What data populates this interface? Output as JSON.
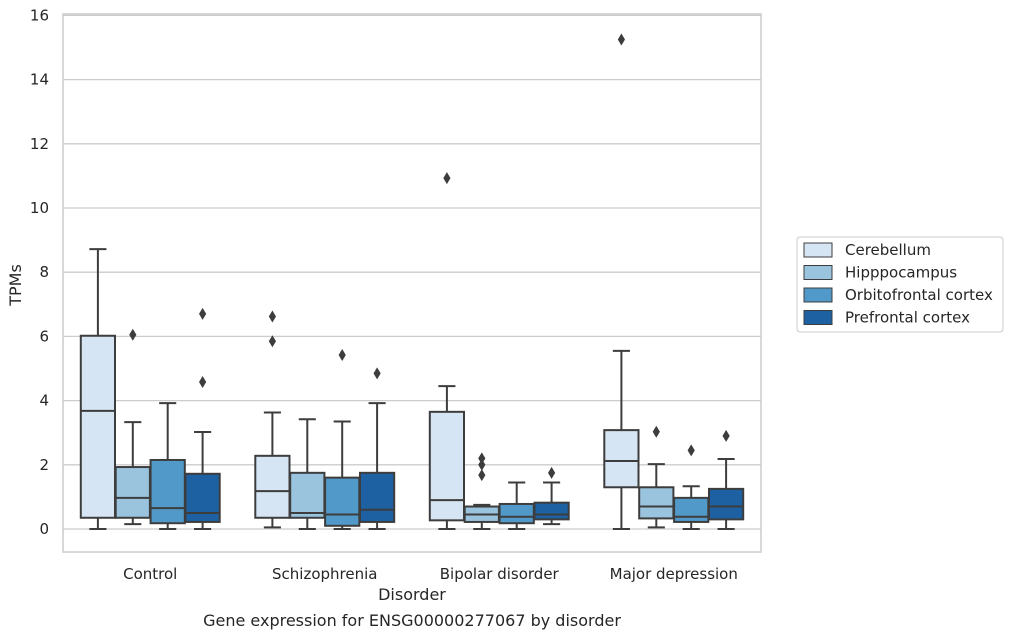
{
  "chart_data": {
    "type": "boxplot",
    "xlabel": "Disorder",
    "ylabel": "TPMs",
    "caption": "Gene expression for ENSG00000277067 by disorder",
    "ylim": [
      -0.7,
      16.1
    ],
    "yticks": [
      0,
      2,
      4,
      6,
      8,
      10,
      12,
      14,
      16
    ],
    "grid": "horizontal",
    "legend_placement": "right",
    "categories": [
      "Control",
      "Schizophrenia",
      "Bipolar disorder",
      "Major depression"
    ],
    "series": [
      {
        "name": "Cerebellum",
        "color": "#d6e5f3",
        "boxes": [
          {
            "min": 0.0,
            "q1": 0.35,
            "median": 3.68,
            "q3": 6.02,
            "max": 8.72,
            "outliers": []
          },
          {
            "min": 0.05,
            "q1": 0.35,
            "median": 1.18,
            "q3": 2.28,
            "max": 3.63,
            "outliers": [
              5.85,
              6.62
            ]
          },
          {
            "min": 0.0,
            "q1": 0.27,
            "median": 0.9,
            "q3": 3.65,
            "max": 4.45,
            "outliers": [
              10.93
            ]
          },
          {
            "min": 0.0,
            "q1": 1.3,
            "median": 2.12,
            "q3": 3.08,
            "max": 5.55,
            "outliers": [
              15.25
            ]
          }
        ]
      },
      {
        "name": "Hipppocampus",
        "color": "#9ac4de",
        "boxes": [
          {
            "min": 0.15,
            "q1": 0.35,
            "median": 0.97,
            "q3": 1.93,
            "max": 3.33,
            "outliers": [
              6.05
            ]
          },
          {
            "min": 0.0,
            "q1": 0.35,
            "median": 0.5,
            "q3": 1.75,
            "max": 3.42,
            "outliers": []
          },
          {
            "min": 0.0,
            "q1": 0.22,
            "median": 0.45,
            "q3": 0.7,
            "max": 0.75,
            "outliers": [
              1.68,
              2.0,
              2.2
            ]
          },
          {
            "min": 0.05,
            "q1": 0.33,
            "median": 0.7,
            "q3": 1.3,
            "max": 2.02,
            "outliers": [
              3.03
            ]
          }
        ]
      },
      {
        "name": "Orbitofrontal cortex",
        "color": "#5199c8",
        "boxes": [
          {
            "min": 0.0,
            "q1": 0.18,
            "median": 0.65,
            "q3": 2.15,
            "max": 3.92,
            "outliers": []
          },
          {
            "min": 0.0,
            "q1": 0.1,
            "median": 0.45,
            "q3": 1.6,
            "max": 3.35,
            "outliers": [
              5.42
            ]
          },
          {
            "min": 0.0,
            "q1": 0.18,
            "median": 0.38,
            "q3": 0.78,
            "max": 1.45,
            "outliers": []
          },
          {
            "min": 0.0,
            "q1": 0.22,
            "median": 0.38,
            "q3": 0.97,
            "max": 1.33,
            "outliers": [
              2.45
            ]
          }
        ]
      },
      {
        "name": "Prefrontal cortex",
        "color": "#1d61a3",
        "boxes": [
          {
            "min": 0.0,
            "q1": 0.22,
            "median": 0.5,
            "q3": 1.72,
            "max": 3.02,
            "outliers": [
              4.58,
              6.7
            ]
          },
          {
            "min": 0.0,
            "q1": 0.22,
            "median": 0.6,
            "q3": 1.75,
            "max": 3.92,
            "outliers": [
              4.85
            ]
          },
          {
            "min": 0.15,
            "q1": 0.3,
            "median": 0.45,
            "q3": 0.82,
            "max": 1.45,
            "outliers": [
              1.75
            ]
          },
          {
            "min": 0.0,
            "q1": 0.3,
            "median": 0.7,
            "q3": 1.25,
            "max": 2.18,
            "outliers": [
              2.9
            ]
          }
        ]
      }
    ]
  }
}
